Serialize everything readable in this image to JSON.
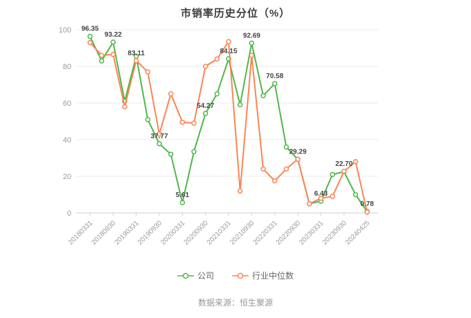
{
  "footer": {
    "source_text": "数据来源：恒生聚源"
  },
  "colors": {
    "company": "#4cb848",
    "industry_median": "#fc8452",
    "grid": "#ebebeb",
    "axis": "#cccccc",
    "tick_text": "#999999",
    "point_label": "#444444",
    "title_text": "#3c3c3c"
  },
  "chart_data": {
    "type": "line",
    "title": "市销率历史分位（%）",
    "xlabel": "",
    "ylabel": "",
    "ylim": [
      0,
      100
    ],
    "y_ticks": [
      0,
      20,
      40,
      60,
      80,
      100
    ],
    "grid": true,
    "legend_position": "bottom",
    "x_tick_labels": [
      "20180331",
      "20180930",
      "20190331",
      "20190930",
      "20200331",
      "20200930",
      "20210331",
      "20210930",
      "20220331",
      "20220930",
      "20230331",
      "20230930",
      "20240425"
    ],
    "x_tick_indices": [
      0,
      2,
      4,
      6,
      8,
      10,
      12,
      14,
      16,
      18,
      20,
      22,
      24
    ],
    "series": [
      {
        "name": "公司",
        "color": "#4cb848",
        "values": [
          96.35,
          83,
          93.22,
          61,
          85.5,
          51,
          37.77,
          32,
          5.61,
          33.5,
          54.27,
          65,
          84.15,
          59,
          92.69,
          64,
          70.58,
          36,
          29.29,
          5,
          6.43,
          21,
          22.5,
          10,
          0.78
        ]
      },
      {
        "name": "行业中位数",
        "color": "#fc8452",
        "values": [
          93,
          86,
          86.5,
          58,
          83.11,
          77,
          43,
          65,
          49.5,
          49,
          80,
          84,
          93.5,
          12,
          86,
          24,
          17.5,
          24,
          29.3,
          5,
          8,
          9,
          22.7,
          28,
          0.5
        ]
      }
    ],
    "point_labels": [
      {
        "series": 0,
        "index": 0,
        "text": "96.35"
      },
      {
        "series": 0,
        "index": 2,
        "text": "93.22"
      },
      {
        "series": 1,
        "index": 4,
        "text": "83.11"
      },
      {
        "series": 0,
        "index": 6,
        "text": "37.77"
      },
      {
        "series": 0,
        "index": 8,
        "text": "5.61"
      },
      {
        "series": 0,
        "index": 10,
        "text": "54.27"
      },
      {
        "series": 0,
        "index": 12,
        "text": "84.15"
      },
      {
        "series": 0,
        "index": 14,
        "text": "92.69"
      },
      {
        "series": 0,
        "index": 16,
        "text": "70.58"
      },
      {
        "series": 0,
        "index": 18,
        "text": "29.29"
      },
      {
        "series": 0,
        "index": 20,
        "text": "6.43"
      },
      {
        "series": 1,
        "index": 22,
        "text": "22.70"
      },
      {
        "series": 0,
        "index": 24,
        "text": "0.78"
      }
    ]
  }
}
